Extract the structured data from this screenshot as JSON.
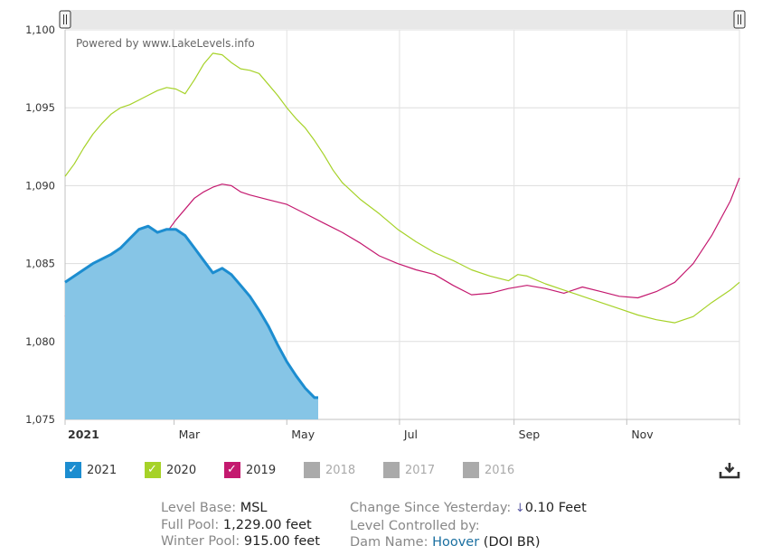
{
  "chart_data": {
    "type": "area",
    "watermark": "Powered by www.LakeLevels.info",
    "y_axis": {
      "ylim": [
        1075,
        1100
      ],
      "ticks": [
        "1,075",
        "1,080",
        "1,085",
        "1,090",
        "1,095",
        "1,100"
      ],
      "tick_values": [
        1075,
        1080,
        1085,
        1090,
        1095,
        1100
      ]
    },
    "x_axis": {
      "xlim": [
        0,
        365
      ],
      "ticks": [
        {
          "label": "2021",
          "day": 0
        },
        {
          "label": "Mar",
          "day": 59
        },
        {
          "label": "May",
          "day": 120
        },
        {
          "label": "Jul",
          "day": 181
        },
        {
          "label": "Sep",
          "day": 243
        },
        {
          "label": "Nov",
          "day": 304
        }
      ]
    },
    "series": [
      {
        "name": "2021",
        "color": "#1c8dd0",
        "fill": "#86c5e6",
        "type": "area",
        "points": [
          [
            0,
            1083.8
          ],
          [
            5,
            1084.2
          ],
          [
            10,
            1084.6
          ],
          [
            15,
            1085.0
          ],
          [
            20,
            1085.3
          ],
          [
            25,
            1085.6
          ],
          [
            30,
            1086.0
          ],
          [
            35,
            1086.6
          ],
          [
            40,
            1087.2
          ],
          [
            45,
            1087.4
          ],
          [
            50,
            1087.0
          ],
          [
            55,
            1087.2
          ],
          [
            60,
            1087.2
          ],
          [
            65,
            1086.8
          ],
          [
            70,
            1086.0
          ],
          [
            75,
            1085.2
          ],
          [
            80,
            1084.4
          ],
          [
            85,
            1084.7
          ],
          [
            90,
            1084.3
          ],
          [
            95,
            1083.6
          ],
          [
            100,
            1082.9
          ],
          [
            105,
            1082.0
          ],
          [
            110,
            1081.0
          ],
          [
            115,
            1079.8
          ],
          [
            120,
            1078.7
          ],
          [
            125,
            1077.8
          ],
          [
            130,
            1077.0
          ],
          [
            135,
            1076.4
          ],
          [
            137,
            1076.4
          ]
        ]
      },
      {
        "name": "2020",
        "color": "#a6d228",
        "type": "line",
        "points": [
          [
            0,
            1090.6
          ],
          [
            5,
            1091.4
          ],
          [
            10,
            1092.4
          ],
          [
            15,
            1093.3
          ],
          [
            20,
            1094.0
          ],
          [
            25,
            1094.6
          ],
          [
            30,
            1095.0
          ],
          [
            35,
            1095.2
          ],
          [
            40,
            1095.5
          ],
          [
            45,
            1095.8
          ],
          [
            50,
            1096.1
          ],
          [
            55,
            1096.3
          ],
          [
            60,
            1096.2
          ],
          [
            65,
            1095.9
          ],
          [
            70,
            1096.8
          ],
          [
            75,
            1097.8
          ],
          [
            80,
            1098.5
          ],
          [
            85,
            1098.4
          ],
          [
            90,
            1097.9
          ],
          [
            95,
            1097.5
          ],
          [
            100,
            1097.4
          ],
          [
            105,
            1097.2
          ],
          [
            110,
            1096.5
          ],
          [
            115,
            1095.8
          ],
          [
            120,
            1095.0
          ],
          [
            125,
            1094.3
          ],
          [
            130,
            1093.7
          ],
          [
            135,
            1092.9
          ],
          [
            140,
            1092.0
          ],
          [
            145,
            1091.0
          ],
          [
            150,
            1090.2
          ],
          [
            160,
            1089.1
          ],
          [
            170,
            1088.2
          ],
          [
            180,
            1087.2
          ],
          [
            190,
            1086.4
          ],
          [
            200,
            1085.7
          ],
          [
            210,
            1085.2
          ],
          [
            220,
            1084.6
          ],
          [
            230,
            1084.2
          ],
          [
            240,
            1083.9
          ],
          [
            245,
            1084.3
          ],
          [
            250,
            1084.2
          ],
          [
            260,
            1083.7
          ],
          [
            270,
            1083.3
          ],
          [
            280,
            1082.9
          ],
          [
            290,
            1082.5
          ],
          [
            300,
            1082.1
          ],
          [
            310,
            1081.7
          ],
          [
            320,
            1081.4
          ],
          [
            330,
            1081.2
          ],
          [
            340,
            1081.6
          ],
          [
            350,
            1082.5
          ],
          [
            360,
            1083.3
          ],
          [
            365,
            1083.8
          ]
        ]
      },
      {
        "name": "2019",
        "color": "#c4196f",
        "type": "line",
        "points": [
          [
            0,
            1081.6
          ],
          [
            5,
            1082.1
          ],
          [
            10,
            1082.9
          ],
          [
            15,
            1083.7
          ],
          [
            20,
            1084.5
          ],
          [
            25,
            1085.0
          ],
          [
            30,
            1085.4
          ],
          [
            35,
            1085.7
          ],
          [
            40,
            1085.8
          ],
          [
            45,
            1085.8
          ],
          [
            50,
            1086.0
          ],
          [
            55,
            1087.0
          ],
          [
            60,
            1087.8
          ],
          [
            65,
            1088.5
          ],
          [
            70,
            1089.2
          ],
          [
            75,
            1089.6
          ],
          [
            80,
            1089.9
          ],
          [
            85,
            1090.1
          ],
          [
            90,
            1090.0
          ],
          [
            95,
            1089.6
          ],
          [
            100,
            1089.4
          ],
          [
            110,
            1089.1
          ],
          [
            120,
            1088.8
          ],
          [
            130,
            1088.2
          ],
          [
            140,
            1087.6
          ],
          [
            150,
            1087.0
          ],
          [
            160,
            1086.3
          ],
          [
            170,
            1085.5
          ],
          [
            180,
            1085.0
          ],
          [
            190,
            1084.6
          ],
          [
            200,
            1084.3
          ],
          [
            210,
            1083.6
          ],
          [
            220,
            1083.0
          ],
          [
            230,
            1083.1
          ],
          [
            240,
            1083.4
          ],
          [
            250,
            1083.6
          ],
          [
            260,
            1083.4
          ],
          [
            270,
            1083.1
          ],
          [
            280,
            1083.5
          ],
          [
            290,
            1083.2
          ],
          [
            300,
            1082.9
          ],
          [
            310,
            1082.8
          ],
          [
            320,
            1083.2
          ],
          [
            330,
            1083.8
          ],
          [
            340,
            1085.0
          ],
          [
            350,
            1086.8
          ],
          [
            360,
            1089.0
          ],
          [
            365,
            1090.5
          ]
        ]
      }
    ]
  },
  "legend": [
    {
      "name": "2021",
      "color": "#1c8dd0",
      "enabled": true
    },
    {
      "name": "2020",
      "color": "#a6d228",
      "enabled": true
    },
    {
      "name": "2019",
      "color": "#c4196f",
      "enabled": true
    },
    {
      "name": "2018",
      "color": "#aaaaaa",
      "enabled": false
    },
    {
      "name": "2017",
      "color": "#aaaaaa",
      "enabled": false
    },
    {
      "name": "2016",
      "color": "#aaaaaa",
      "enabled": false
    }
  ],
  "info": {
    "level_base_label": "Level Base:",
    "level_base_value": "MSL",
    "full_pool_label": "Full Pool:",
    "full_pool_value": "1,229.00 feet",
    "winter_pool_label": "Winter Pool:",
    "winter_pool_value": "915.00 feet",
    "change_label": "Change Since Yesterday:",
    "change_arrow": "↓",
    "change_value": "0.10 Feet",
    "controlled_label": "Level Controlled by:",
    "dam_label": "Dam Name:",
    "dam_name": "Hoover",
    "dam_owner": "(DOI BR)"
  },
  "icons": {
    "download": "download-icon",
    "check": "✓"
  }
}
